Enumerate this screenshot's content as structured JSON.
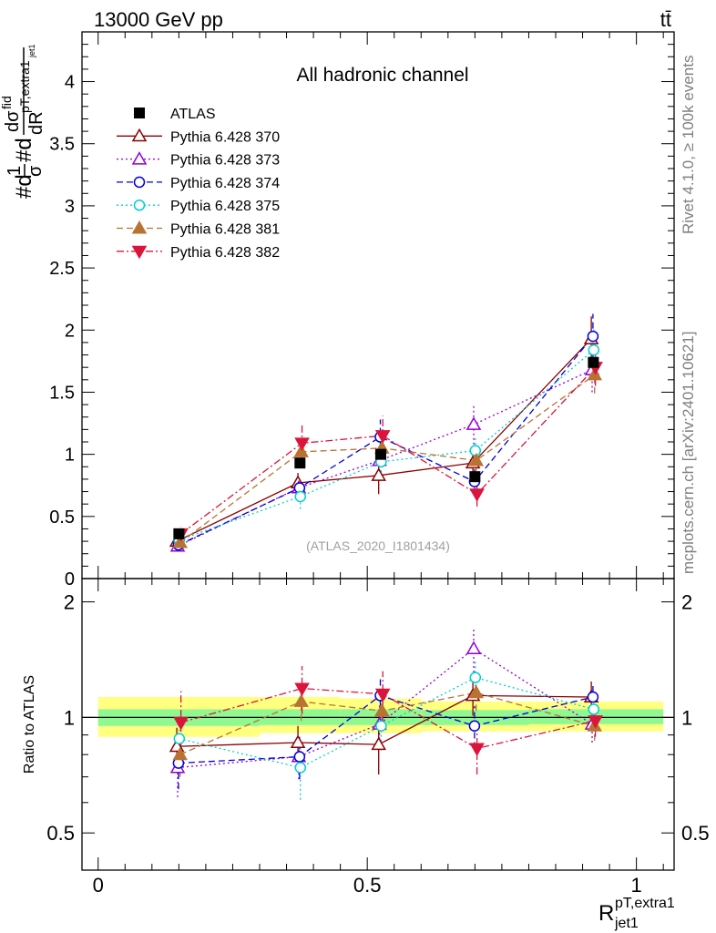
{
  "header": {
    "energy_label": "13000 GeV pp",
    "process_label": "tt̄"
  },
  "side": {
    "rivet_label": "Rivet 4.1.0, ≥ 100k events",
    "mcplots_label": "mcplots.cern.ch [arXiv:2401.10621]"
  },
  "chart_data": [
    {
      "type": "scatter",
      "panel": "main",
      "title": "All hadronic channel",
      "watermark": "(ATLAS_2020_I1801434)",
      "ylabel": "#d 1/σ #d dσ^fid/dR^pT,extra1_jet1",
      "ylabel_parts": {
        "prefix": "#d",
        "frac_num": "1",
        "frac_den": "σ",
        "mid": "#d",
        "d_sigma": "dσ",
        "fid": "fid",
        "dr": "dR",
        "sub_main": "pT,extra1",
        "sub_small": "jet1"
      },
      "xlim": [
        -0.03,
        1.07
      ],
      "ylim": [
        0,
        4.4
      ],
      "yticks": [
        0,
        0.5,
        1,
        1.5,
        2,
        2.5,
        3,
        3.5,
        4
      ],
      "ytick_labels": [
        "0",
        "0.5",
        "1",
        "1.5",
        "2",
        "2.5",
        "3",
        "3.5",
        "4"
      ],
      "x": [
        0.15,
        0.375,
        0.525,
        0.7,
        0.92
      ],
      "data": {
        "name": "ATLAS",
        "color": "#000000",
        "values": [
          0.36,
          0.93,
          1.0,
          0.82,
          1.74
        ]
      },
      "series": [
        {
          "name": "Pythia 6.428 370",
          "color": "#8b0000",
          "marker": "triangle-open",
          "dash": "solid",
          "values": [
            0.3,
            0.77,
            0.83,
            0.93,
            1.93
          ],
          "errors": [
            0.04,
            0.08,
            0.15,
            0.1,
            0.18
          ]
        },
        {
          "name": "Pythia 6.428 373",
          "color": "#9400d3",
          "marker": "triangle-open",
          "dash": "dotted",
          "values": [
            0.26,
            0.73,
            0.95,
            1.24,
            1.68
          ],
          "errors": [
            0.04,
            0.08,
            0.12,
            0.16,
            0.18
          ]
        },
        {
          "name": "Pythia 6.428 374",
          "color": "#0000dd",
          "marker": "circle-open",
          "dash": "dashed",
          "values": [
            0.27,
            0.73,
            1.14,
            0.78,
            1.95
          ],
          "errors": [
            0.04,
            0.08,
            0.14,
            0.1,
            0.18
          ]
        },
        {
          "name": "Pythia 6.428 375",
          "color": "#00ced1",
          "marker": "circle-open",
          "dash": "dotted",
          "values": [
            0.31,
            0.66,
            0.94,
            1.03,
            1.84
          ],
          "errors": [
            0.04,
            0.1,
            0.12,
            0.1,
            0.18
          ]
        },
        {
          "name": "Pythia 6.428 381",
          "color": "#b87333",
          "marker": "triangle-filled",
          "dash": "dashed",
          "values": [
            0.29,
            1.02,
            1.05,
            0.95,
            1.64
          ],
          "errors": [
            0.04,
            0.1,
            0.12,
            0.1,
            0.15
          ]
        },
        {
          "name": "Pythia 6.428 382",
          "color": "#dc143c",
          "marker": "triangledown-filled",
          "dash": "dashdot",
          "values": [
            0.36,
            1.09,
            1.15,
            0.68,
            1.7
          ],
          "errors": [
            0.06,
            0.15,
            0.16,
            0.1,
            0.15
          ]
        }
      ]
    },
    {
      "type": "scatter",
      "panel": "ratio",
      "ylabel": "Ratio to ATLAS",
      "xlabel": "R",
      "xlabel_sup": "pT,extra1",
      "xlabel_sub": "jet1",
      "xlim": [
        -0.03,
        1.07
      ],
      "ylim": [
        0.4,
        2.3
      ],
      "ylog": true,
      "xticks": [
        0,
        0.5,
        1
      ],
      "xtick_labels": [
        "0",
        "0.5",
        "1"
      ],
      "yticks": [
        0.5,
        1,
        2
      ],
      "ytick_labels": [
        "0.5",
        "1",
        "2"
      ],
      "bands": [
        {
          "xlo": 0.0,
          "xhi": 0.3,
          "stat_lo": 0.95,
          "stat_hi": 1.05,
          "tot_lo": 0.89,
          "tot_hi": 1.13
        },
        {
          "xlo": 0.3,
          "xhi": 0.45,
          "stat_lo": 0.955,
          "stat_hi": 1.05,
          "tot_lo": 0.91,
          "tot_hi": 1.13
        },
        {
          "xlo": 0.45,
          "xhi": 0.6,
          "stat_lo": 0.955,
          "stat_hi": 1.05,
          "tot_lo": 0.91,
          "tot_hi": 1.12
        },
        {
          "xlo": 0.6,
          "xhi": 0.8,
          "stat_lo": 0.955,
          "stat_hi": 1.045,
          "tot_lo": 0.92,
          "tot_hi": 1.1
        },
        {
          "xlo": 0.8,
          "xhi": 1.05,
          "stat_lo": 0.96,
          "stat_hi": 1.05,
          "tot_lo": 0.92,
          "tot_hi": 1.1
        }
      ],
      "x": [
        0.15,
        0.375,
        0.525,
        0.7,
        0.92
      ],
      "series": [
        {
          "name": "Pythia 6.428 370",
          "values": [
            0.84,
            0.86,
            0.85,
            1.14,
            1.13
          ],
          "errors": [
            0.1,
            0.09,
            0.14,
            0.13,
            0.11
          ]
        },
        {
          "name": "Pythia 6.428 373",
          "values": [
            0.74,
            0.79,
            0.96,
            1.51,
            0.96
          ],
          "errors": [
            0.12,
            0.1,
            0.13,
            0.2,
            0.1
          ]
        },
        {
          "name": "Pythia 6.428 374",
          "values": [
            0.76,
            0.79,
            1.14,
            0.95,
            1.13
          ],
          "errors": [
            0.11,
            0.1,
            0.13,
            0.12,
            0.1
          ]
        },
        {
          "name": "Pythia 6.428 375",
          "values": [
            0.88,
            0.74,
            0.95,
            1.27,
            1.05
          ],
          "errors": [
            0.12,
            0.13,
            0.13,
            0.13,
            0.1
          ]
        },
        {
          "name": "Pythia 6.428 381",
          "values": [
            0.8,
            1.1,
            1.04,
            1.16,
            0.95
          ],
          "errors": [
            0.1,
            0.12,
            0.12,
            0.12,
            0.08
          ]
        },
        {
          "name": "Pythia 6.428 382",
          "values": [
            0.97,
            1.19,
            1.15,
            0.83,
            0.98
          ],
          "errors": [
            0.2,
            0.17,
            0.17,
            0.12,
            0.09
          ]
        }
      ]
    }
  ]
}
